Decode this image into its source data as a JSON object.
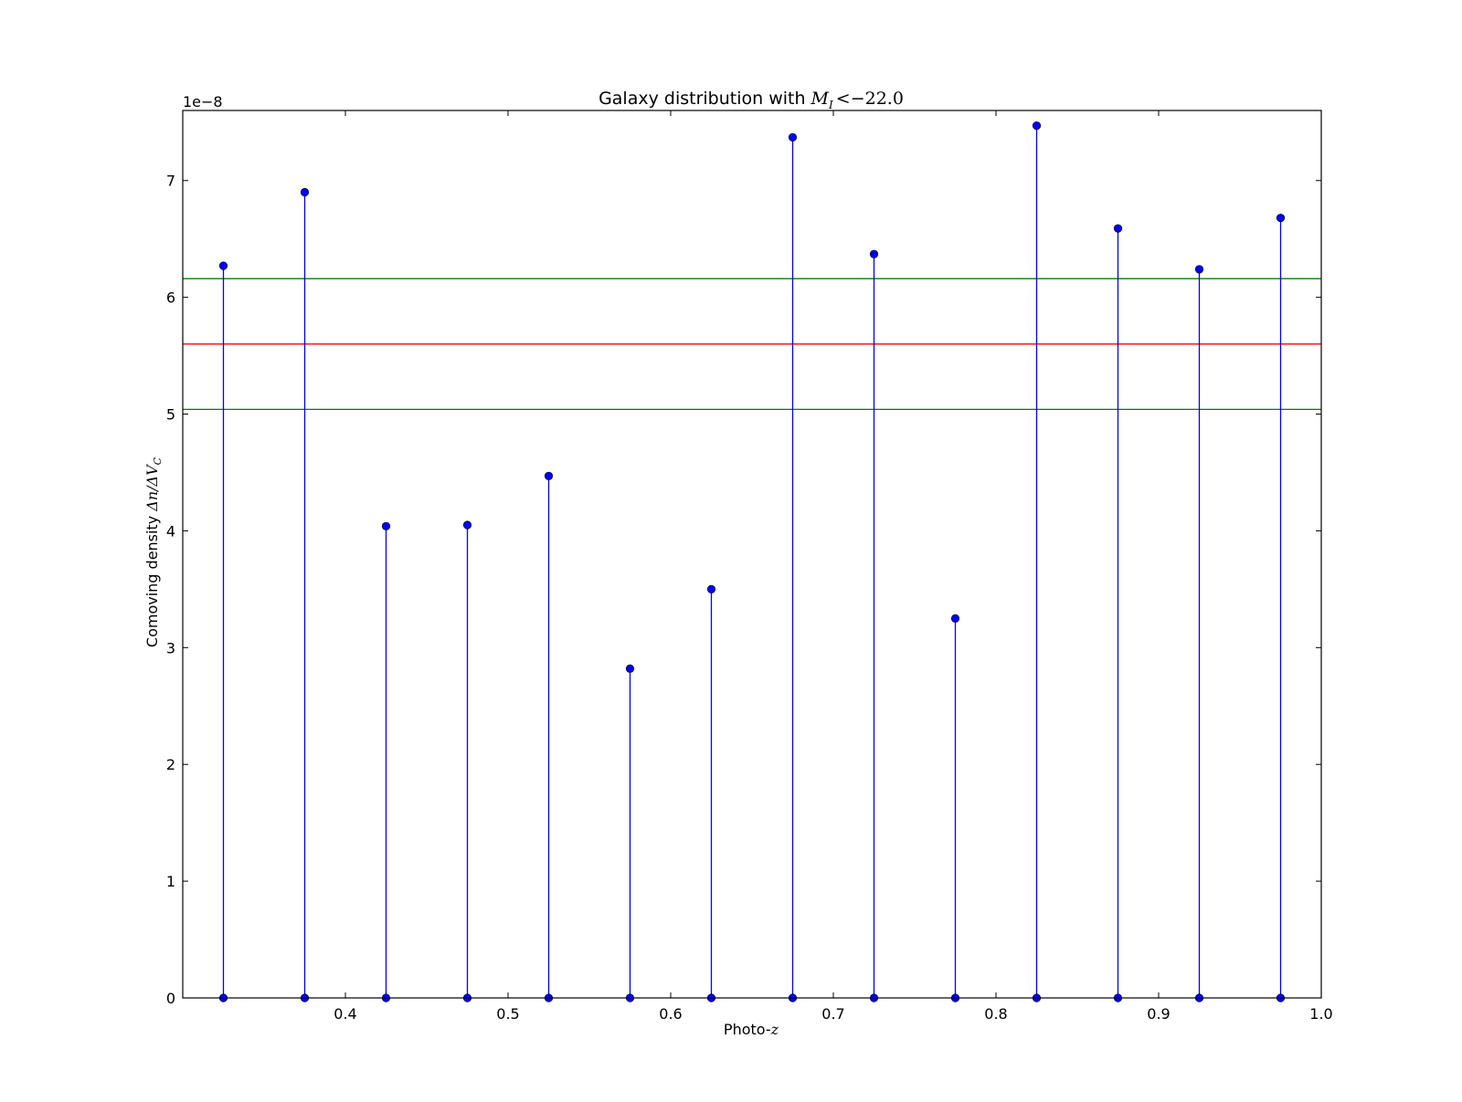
{
  "chart_data": {
    "type": "stem",
    "title_prefix": "Galaxy distribution with ",
    "title_math": {
      "var": "M",
      "sub": "I",
      "op": "<",
      "value": "−22.0"
    },
    "xlabel_prefix": "Photo-",
    "xlabel_math": "z",
    "ylabel_prefix": "Comoving density ",
    "ylabel_math": "Δn/ΔV",
    "ylabel_math_sub": "C",
    "y_offset_label": "1e−8",
    "xlim": [
      0.3,
      1.0
    ],
    "ylim": [
      0,
      7.6
    ],
    "y_scale_factor": 1e-08,
    "xticks": [
      0.4,
      0.5,
      0.6,
      0.7,
      0.8,
      0.9,
      1.0
    ],
    "xtick_labels": [
      "0.4",
      "0.5",
      "0.6",
      "0.7",
      "0.8",
      "0.9",
      "1.0"
    ],
    "yticks": [
      0,
      1,
      2,
      3,
      4,
      5,
      6,
      7
    ],
    "ytick_labels": [
      "0",
      "1",
      "2",
      "3",
      "4",
      "5",
      "6",
      "7"
    ],
    "grid": false,
    "series": [
      {
        "x": [
          0.325,
          0.375,
          0.425,
          0.475,
          0.525,
          0.575,
          0.625,
          0.675,
          0.725,
          0.775,
          0.825,
          0.875,
          0.925,
          0.975
        ],
        "values": [
          6.27,
          6.9,
          4.04,
          4.05,
          4.47,
          2.82,
          3.5,
          7.37,
          6.37,
          3.25,
          7.47,
          6.59,
          6.24,
          6.68
        ],
        "color": "#0000ff"
      }
    ],
    "hlines": [
      {
        "y": 6.16,
        "color": "#008000"
      },
      {
        "y": 5.6,
        "color": "#ff0000"
      },
      {
        "y": 5.04,
        "color": "#008000"
      }
    ]
  }
}
